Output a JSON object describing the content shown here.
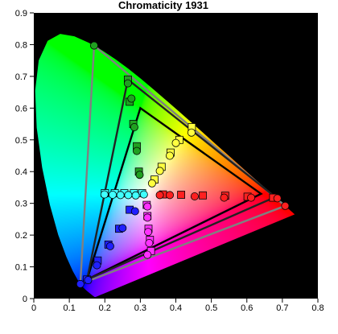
{
  "chart_data": {
    "type": "scatter",
    "title": "Chromaticity 1931",
    "xlim": [
      0,
      0.8
    ],
    "ylim": [
      0,
      0.9
    ],
    "xticks": [
      0,
      0.1,
      0.2,
      0.3,
      0.4,
      0.5,
      0.6,
      0.7,
      0.8
    ],
    "yticks": [
      0,
      0.1,
      0.2,
      0.3,
      0.4,
      0.5,
      0.6,
      0.7,
      0.8,
      0.9
    ],
    "xtick_labels": [
      "0",
      "0.1",
      "0.2",
      "0.3",
      "0.4",
      "0.5",
      "0.6",
      "0.7",
      "0.8"
    ],
    "ytick_labels": [
      "0",
      "0.1",
      "0.2",
      "0.3",
      "0.4",
      "0.5",
      "0.6",
      "0.7",
      "0.8",
      "0.9"
    ],
    "plot_background": "#000000",
    "grid": false,
    "locus": [
      [
        0.1741,
        0.005
      ],
      [
        0.1738,
        0.0049
      ],
      [
        0.1736,
        0.0049
      ],
      [
        0.1733,
        0.0048
      ],
      [
        0.173,
        0.0048
      ],
      [
        0.1726,
        0.0048
      ],
      [
        0.1721,
        0.0048
      ],
      [
        0.1714,
        0.0051
      ],
      [
        0.1703,
        0.0058
      ],
      [
        0.1689,
        0.0069
      ],
      [
        0.1669,
        0.0086
      ],
      [
        0.1644,
        0.0109
      ],
      [
        0.1611,
        0.0138
      ],
      [
        0.1566,
        0.0177
      ],
      [
        0.151,
        0.0227
      ],
      [
        0.144,
        0.0297
      ],
      [
        0.1355,
        0.0399
      ],
      [
        0.1241,
        0.0578
      ],
      [
        0.1096,
        0.0868
      ],
      [
        0.0913,
        0.1327
      ],
      [
        0.0687,
        0.2007
      ],
      [
        0.0454,
        0.295
      ],
      [
        0.0235,
        0.4127
      ],
      [
        0.0082,
        0.5384
      ],
      [
        0.0039,
        0.6548
      ],
      [
        0.0139,
        0.7502
      ],
      [
        0.0389,
        0.812
      ],
      [
        0.0743,
        0.8338
      ],
      [
        0.1142,
        0.8262
      ],
      [
        0.1547,
        0.8059
      ],
      [
        0.1929,
        0.7816
      ],
      [
        0.2296,
        0.7543
      ],
      [
        0.2658,
        0.7243
      ],
      [
        0.3016,
        0.6923
      ],
      [
        0.3373,
        0.6589
      ],
      [
        0.3731,
        0.6245
      ],
      [
        0.4087,
        0.5896
      ],
      [
        0.4441,
        0.5547
      ],
      [
        0.4788,
        0.5202
      ],
      [
        0.5125,
        0.4866
      ],
      [
        0.5448,
        0.4544
      ],
      [
        0.5752,
        0.4242
      ],
      [
        0.6029,
        0.3965
      ],
      [
        0.627,
        0.3725
      ],
      [
        0.6482,
        0.3514
      ],
      [
        0.6658,
        0.334
      ],
      [
        0.6801,
        0.3197
      ],
      [
        0.6915,
        0.3083
      ],
      [
        0.7006,
        0.2993
      ],
      [
        0.7079,
        0.292
      ],
      [
        0.714,
        0.2859
      ],
      [
        0.719,
        0.2809
      ],
      [
        0.723,
        0.277
      ],
      [
        0.726,
        0.274
      ],
      [
        0.7283,
        0.2717
      ],
      [
        0.73,
        0.27
      ],
      [
        0.7311,
        0.2689
      ],
      [
        0.732,
        0.268
      ],
      [
        0.7327,
        0.2673
      ],
      [
        0.7334,
        0.2666
      ],
      [
        0.734,
        0.266
      ],
      [
        0.7344,
        0.2656
      ],
      [
        0.7346,
        0.2654
      ],
      [
        0.7347,
        0.2653
      ]
    ],
    "triangles": [
      {
        "color": "#000000",
        "points": [
          [
            0.64,
            0.33
          ],
          [
            0.3,
            0.6
          ],
          [
            0.15,
            0.06
          ]
        ]
      },
      {
        "color": "#808080",
        "points": [
          [
            0.708,
            0.292
          ],
          [
            0.17,
            0.797
          ],
          [
            0.131,
            0.046
          ]
        ]
      },
      {
        "color": "#222222",
        "points": [
          [
            0.68,
            0.32
          ],
          [
            0.265,
            0.69
          ],
          [
            0.15,
            0.06
          ]
        ]
      }
    ],
    "series": [
      {
        "name": "",
        "color": "#ff2020",
        "marker": "square",
        "points": [
          [
            0.602,
            0.321
          ],
          [
            0.539,
            0.324
          ],
          [
            0.476,
            0.325
          ],
          [
            0.415,
            0.327
          ],
          [
            0.364,
            0.328
          ],
          [
            0.674,
            0.318
          ]
        ]
      },
      {
        "name": "",
        "color": "#ff2020",
        "marker": "circle",
        "points": [
          [
            0.612,
            0.318
          ],
          [
            0.536,
            0.318
          ],
          [
            0.453,
            0.322
          ],
          [
            0.383,
            0.326
          ],
          [
            0.355,
            0.326
          ],
          [
            0.708,
            0.292
          ],
          [
            0.686,
            0.316
          ]
        ]
      },
      {
        "name": "",
        "color": "#20a020",
        "marker": "square",
        "points": [
          [
            0.265,
            0.69
          ],
          [
            0.27,
            0.62
          ],
          [
            0.28,
            0.55
          ],
          [
            0.29,
            0.48
          ],
          [
            0.296,
            0.4
          ]
        ]
      },
      {
        "name": "",
        "color": "#20a020",
        "marker": "circle",
        "points": [
          [
            0.17,
            0.797
          ],
          [
            0.265,
            0.678
          ],
          [
            0.275,
            0.63
          ],
          [
            0.283,
            0.54
          ],
          [
            0.29,
            0.465
          ],
          [
            0.298,
            0.39
          ]
        ]
      },
      {
        "name": "",
        "color": "#ffff40",
        "marker": "square",
        "points": [
          [
            0.445,
            0.54
          ],
          [
            0.41,
            0.5
          ],
          [
            0.385,
            0.46
          ],
          [
            0.36,
            0.415
          ],
          [
            0.34,
            0.375
          ]
        ]
      },
      {
        "name": "",
        "color": "#ffff40",
        "marker": "circle",
        "points": [
          [
            0.444,
            0.523
          ],
          [
            0.4,
            0.49
          ],
          [
            0.383,
            0.45
          ],
          [
            0.355,
            0.402
          ],
          [
            0.333,
            0.363
          ]
        ]
      },
      {
        "name": "",
        "color": "#40ffff",
        "marker": "square",
        "points": [
          [
            0.2,
            0.332
          ],
          [
            0.228,
            0.332
          ],
          [
            0.255,
            0.332
          ],
          [
            0.282,
            0.332
          ],
          [
            0.305,
            0.332
          ]
        ]
      },
      {
        "name": "",
        "color": "#40ffff",
        "marker": "circle",
        "points": [
          [
            0.199,
            0.328
          ],
          [
            0.222,
            0.327
          ],
          [
            0.244,
            0.326
          ],
          [
            0.266,
            0.326
          ],
          [
            0.287,
            0.325
          ],
          [
            0.31,
            0.328
          ]
        ]
      },
      {
        "name": "",
        "color": "#2020ff",
        "marker": "square",
        "points": [
          [
            0.15,
            0.06
          ],
          [
            0.18,
            0.12
          ],
          [
            0.21,
            0.17
          ],
          [
            0.24,
            0.22
          ],
          [
            0.27,
            0.28
          ]
        ]
      },
      {
        "name": "",
        "color": "#2020ff",
        "marker": "circle",
        "points": [
          [
            0.131,
            0.046
          ],
          [
            0.153,
            0.058
          ],
          [
            0.178,
            0.105
          ],
          [
            0.215,
            0.165
          ],
          [
            0.25,
            0.222
          ],
          [
            0.285,
            0.275
          ]
        ]
      },
      {
        "name": "",
        "color": "#ff30ff",
        "marker": "square",
        "points": [
          [
            0.33,
            0.15
          ],
          [
            0.327,
            0.185
          ],
          [
            0.323,
            0.22
          ],
          [
            0.32,
            0.26
          ],
          [
            0.318,
            0.295
          ]
        ]
      },
      {
        "name": "",
        "color": "#ff30ff",
        "marker": "circle",
        "points": [
          [
            0.32,
            0.138
          ],
          [
            0.325,
            0.175
          ],
          [
            0.322,
            0.21
          ],
          [
            0.32,
            0.255
          ],
          [
            0.32,
            0.29
          ]
        ]
      }
    ]
  }
}
